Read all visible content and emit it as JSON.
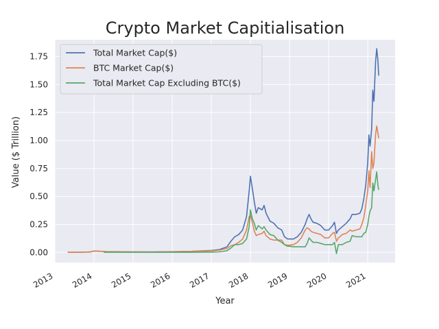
{
  "chart_data": {
    "type": "line",
    "title": "Crypto Market Capitialisation",
    "xlabel": "Year",
    "ylabel": "Value ($ Trillion)",
    "xlim": [
      2013.0,
      2021.7
    ],
    "ylim": [
      -0.09,
      1.9
    ],
    "x_ticks": [
      "2013",
      "2014",
      "2015",
      "2016",
      "2017",
      "2018",
      "2019",
      "2020",
      "2021"
    ],
    "y_ticks": [
      "0.00",
      "0.25",
      "0.50",
      "0.75",
      "1.00",
      "1.25",
      "1.50",
      "1.75"
    ],
    "grid": true,
    "legend_position": "top-left",
    "series": [
      {
        "name": "Total Market Cap($)",
        "color": "#4c72b0",
        "x": [
          2013.33,
          2013.6,
          2013.9,
          2014.0,
          2014.3,
          2014.6,
          2015.0,
          2015.5,
          2016.0,
          2016.5,
          2017.0,
          2017.2,
          2017.4,
          2017.5,
          2017.6,
          2017.7,
          2017.8,
          2017.9,
          2017.97,
          2018.0,
          2018.05,
          2018.1,
          2018.15,
          2018.2,
          2018.3,
          2018.35,
          2018.4,
          2018.5,
          2018.6,
          2018.7,
          2018.8,
          2018.87,
          2018.95,
          2019.0,
          2019.1,
          2019.2,
          2019.3,
          2019.4,
          2019.45,
          2019.5,
          2019.55,
          2019.6,
          2019.7,
          2019.8,
          2019.9,
          2020.0,
          2020.1,
          2020.15,
          2020.2,
          2020.25,
          2020.35,
          2020.45,
          2020.55,
          2020.6,
          2020.7,
          2020.8,
          2020.85,
          2020.9,
          2020.95,
          2021.0,
          2021.03,
          2021.06,
          2021.1,
          2021.13,
          2021.16,
          2021.2,
          2021.23,
          2021.26,
          2021.28
        ],
        "y": [
          0.002,
          0.002,
          0.004,
          0.013,
          0.008,
          0.007,
          0.005,
          0.004,
          0.007,
          0.01,
          0.018,
          0.025,
          0.05,
          0.1,
          0.14,
          0.16,
          0.2,
          0.32,
          0.55,
          0.68,
          0.57,
          0.45,
          0.35,
          0.4,
          0.38,
          0.42,
          0.35,
          0.28,
          0.26,
          0.22,
          0.2,
          0.14,
          0.12,
          0.12,
          0.12,
          0.14,
          0.18,
          0.25,
          0.3,
          0.34,
          0.3,
          0.27,
          0.26,
          0.24,
          0.2,
          0.2,
          0.24,
          0.27,
          0.17,
          0.2,
          0.23,
          0.26,
          0.3,
          0.34,
          0.34,
          0.35,
          0.39,
          0.48,
          0.6,
          0.8,
          1.05,
          0.95,
          1.1,
          1.45,
          1.35,
          1.7,
          1.82,
          1.72,
          1.58
        ]
      },
      {
        "name": "BTC Market Cap($)",
        "color": "#dd8452",
        "x": [
          2013.33,
          2013.6,
          2013.9,
          2014.0,
          2014.3,
          2014.6,
          2015.0,
          2015.5,
          2016.0,
          2016.5,
          2017.0,
          2017.2,
          2017.4,
          2017.5,
          2017.6,
          2017.7,
          2017.8,
          2017.9,
          2017.97,
          2018.0,
          2018.05,
          2018.1,
          2018.15,
          2018.2,
          2018.3,
          2018.35,
          2018.4,
          2018.5,
          2018.6,
          2018.7,
          2018.8,
          2018.87,
          2018.95,
          2019.0,
          2019.1,
          2019.2,
          2019.3,
          2019.4,
          2019.45,
          2019.5,
          2019.55,
          2019.6,
          2019.7,
          2019.8,
          2019.9,
          2020.0,
          2020.1,
          2020.15,
          2020.2,
          2020.25,
          2020.35,
          2020.45,
          2020.55,
          2020.6,
          2020.7,
          2020.8,
          2020.85,
          2020.9,
          2020.95,
          2021.0,
          2021.03,
          2021.06,
          2021.1,
          2021.13,
          2021.16,
          2021.2,
          2021.23,
          2021.26,
          2021.28
        ],
        "y": [
          0.001,
          0.001,
          0.003,
          0.012,
          0.007,
          0.006,
          0.004,
          0.003,
          0.006,
          0.009,
          0.015,
          0.02,
          0.035,
          0.06,
          0.07,
          0.09,
          0.12,
          0.2,
          0.32,
          0.33,
          0.27,
          0.19,
          0.15,
          0.16,
          0.17,
          0.19,
          0.15,
          0.12,
          0.11,
          0.11,
          0.11,
          0.07,
          0.065,
          0.065,
          0.07,
          0.09,
          0.13,
          0.2,
          0.22,
          0.21,
          0.19,
          0.18,
          0.17,
          0.16,
          0.13,
          0.13,
          0.17,
          0.18,
          0.1,
          0.13,
          0.16,
          0.17,
          0.2,
          0.19,
          0.2,
          0.21,
          0.25,
          0.31,
          0.42,
          0.55,
          0.73,
          0.58,
          0.9,
          0.75,
          0.8,
          1.05,
          1.13,
          1.07,
          1.02
        ]
      },
      {
        "name": "Total Market Cap Excluding BTC($)",
        "color": "#55a868",
        "x": [
          2014.25,
          2014.6,
          2015.0,
          2015.5,
          2016.0,
          2016.5,
          2017.0,
          2017.2,
          2017.4,
          2017.5,
          2017.6,
          2017.7,
          2017.8,
          2017.9,
          2017.97,
          2018.0,
          2018.05,
          2018.1,
          2018.15,
          2018.2,
          2018.3,
          2018.35,
          2018.4,
          2018.5,
          2018.6,
          2018.7,
          2018.8,
          2018.87,
          2018.95,
          2019.0,
          2019.1,
          2019.2,
          2019.3,
          2019.4,
          2019.45,
          2019.5,
          2019.55,
          2019.6,
          2019.7,
          2019.8,
          2019.9,
          2020.0,
          2020.1,
          2020.15,
          2020.2,
          2020.25,
          2020.35,
          2020.45,
          2020.55,
          2020.6,
          2020.7,
          2020.8,
          2020.85,
          2020.9,
          2020.95,
          2021.0,
          2021.03,
          2021.06,
          2021.1,
          2021.13,
          2021.16,
          2021.2,
          2021.23,
          2021.26,
          2021.28
        ],
        "y": [
          0.001,
          0.001,
          0.001,
          0.001,
          0.001,
          0.001,
          0.003,
          0.005,
          0.015,
          0.04,
          0.07,
          0.07,
          0.08,
          0.12,
          0.23,
          0.38,
          0.3,
          0.26,
          0.2,
          0.24,
          0.21,
          0.23,
          0.2,
          0.16,
          0.15,
          0.11,
          0.09,
          0.07,
          0.055,
          0.055,
          0.05,
          0.05,
          0.05,
          0.05,
          0.08,
          0.13,
          0.11,
          0.09,
          0.09,
          0.08,
          0.07,
          0.07,
          0.07,
          0.09,
          -0.01,
          0.07,
          0.07,
          0.09,
          0.1,
          0.15,
          0.14,
          0.14,
          0.14,
          0.17,
          0.18,
          0.25,
          0.32,
          0.37,
          0.4,
          0.62,
          0.55,
          0.65,
          0.72,
          0.6,
          0.56
        ]
      }
    ]
  }
}
